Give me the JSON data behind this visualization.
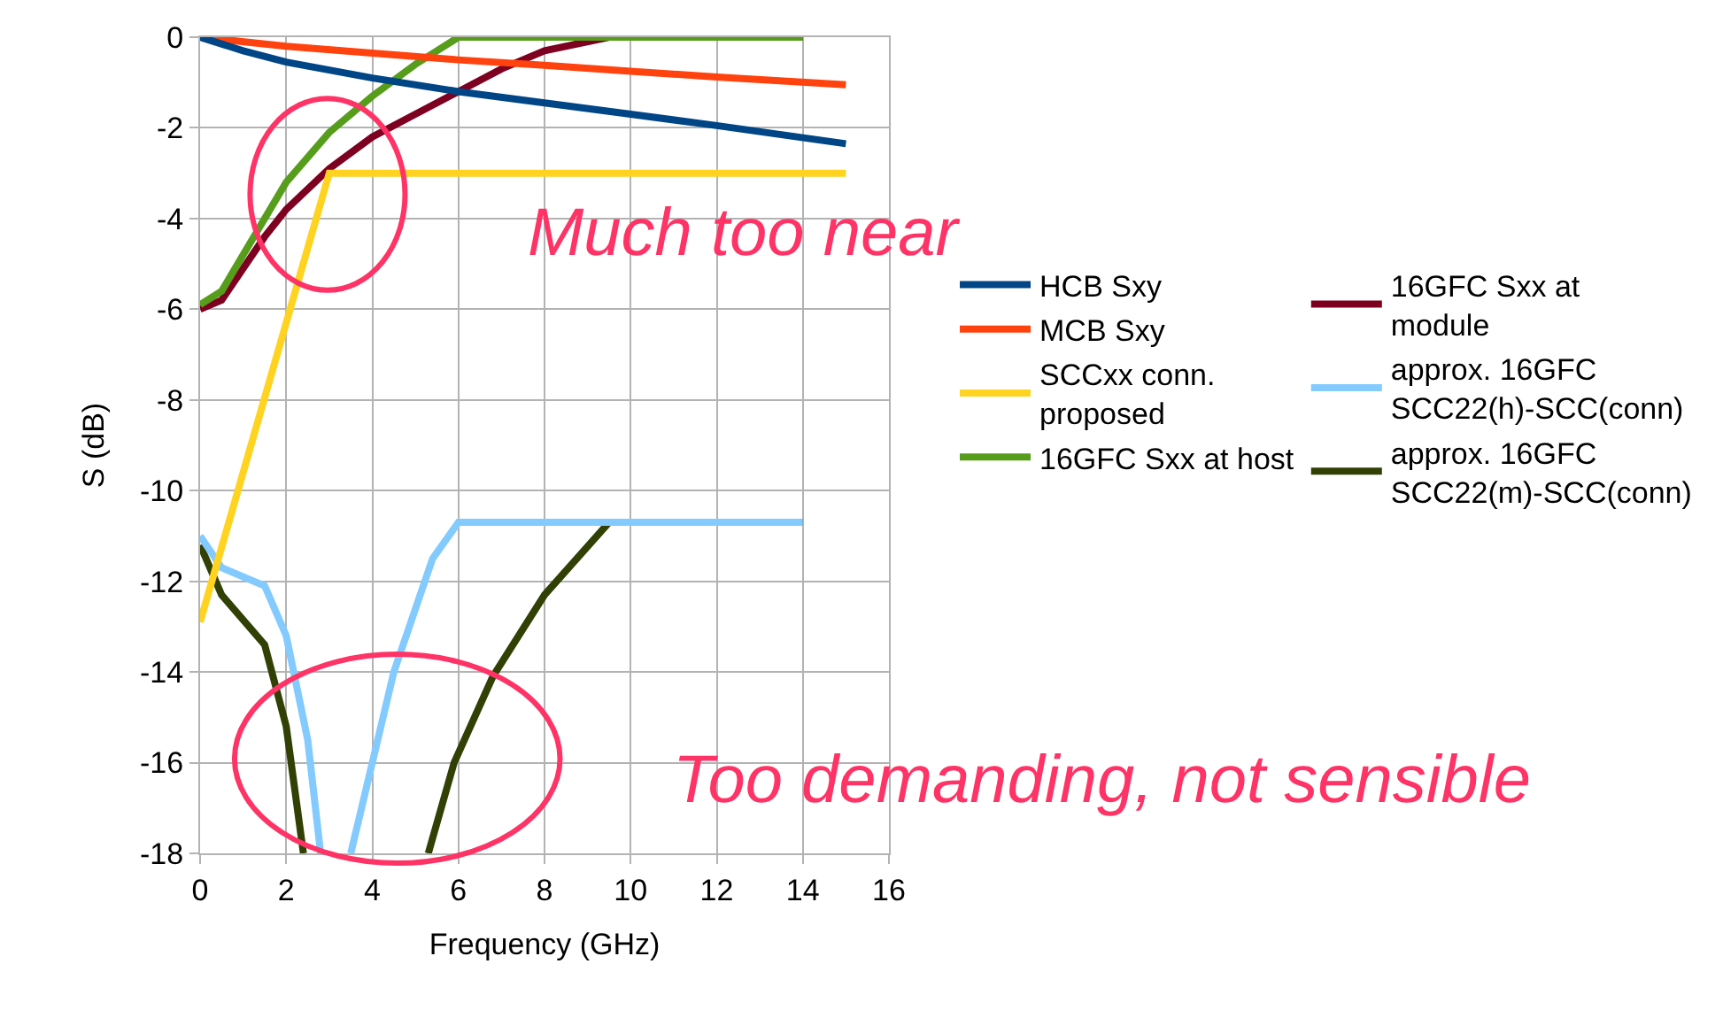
{
  "chart_data": {
    "type": "line",
    "xlabel": "Frequency (GHz)",
    "ylabel": "S (dB)",
    "xlim": [
      0,
      16
    ],
    "ylim": [
      -18,
      0
    ],
    "xticks": [
      0,
      2,
      4,
      6,
      8,
      10,
      12,
      14,
      16
    ],
    "yticks": [
      0,
      -2,
      -4,
      -6,
      -8,
      -10,
      -12,
      -14,
      -16,
      -18
    ],
    "grid": true,
    "legend": "right",
    "marker": "none",
    "line_style": "solid",
    "annotations": [
      "Much too near",
      "Too demanding, not sensible"
    ],
    "series": [
      {
        "name": "HCB Sxy",
        "color": "#004586",
        "x": [
          0,
          1,
          2,
          4,
          6,
          8,
          10,
          12,
          15
        ],
        "values": [
          0,
          -0.3,
          -0.55,
          -0.9,
          -1.2,
          -1.45,
          -1.7,
          -1.95,
          -2.35
        ]
      },
      {
        "name": "MCB Sxy",
        "color": "#ff420e",
        "x": [
          0,
          2,
          4,
          6,
          8,
          10,
          12,
          15
        ],
        "values": [
          0,
          -0.2,
          -0.35,
          -0.5,
          -0.62,
          -0.75,
          -0.88,
          -1.05
        ]
      },
      {
        "name": "SCCxx conn. proposed",
        "color": "#ffd320",
        "x": [
          0,
          3,
          15
        ],
        "values": [
          -12.9,
          -3,
          -3
        ]
      },
      {
        "name": "16GFC Sxx at host",
        "color": "#579d1c",
        "x": [
          0,
          0.5,
          1,
          1.5,
          2,
          3,
          4,
          5,
          6,
          14
        ],
        "values": [
          -5.9,
          -5.6,
          -4.8,
          -4,
          -3.2,
          -2.1,
          -1.3,
          -0.6,
          0,
          0
        ]
      },
      {
        "name": "16GFC Sxx at module",
        "color": "#7e0021",
        "x": [
          0,
          0.5,
          1,
          1.5,
          2,
          3,
          4,
          5,
          6,
          7,
          8,
          9.5,
          14
        ],
        "values": [
          -6,
          -5.8,
          -5.1,
          -4.4,
          -3.8,
          -2.9,
          -2.2,
          -1.7,
          -1.2,
          -0.7,
          -0.3,
          0,
          0
        ]
      },
      {
        "name": "approx. 16GFC SCC22(h)-SCC(conn)",
        "color": "#83caff",
        "x": [
          0,
          0.5,
          1.5,
          2,
          2.5,
          2.8,
          3.2,
          3.5,
          4,
          4.5,
          5.4,
          6,
          14
        ],
        "values": [
          -11,
          -11.7,
          -12.1,
          -13.2,
          -15.5,
          -18,
          null,
          -18,
          -16,
          -14,
          -11.5,
          -10.7,
          -10.7
        ]
      },
      {
        "name": "approx. 16GFC SCC22(m)-SCC(conn)",
        "color": "#314004",
        "x": [
          0,
          0.5,
          1.5,
          2,
          2.4,
          3.8,
          5.3,
          5.9,
          6.8,
          8,
          9.5,
          14
        ],
        "values": [
          -11.2,
          -12.3,
          -13.4,
          -15.2,
          -18,
          null,
          -18,
          -16,
          -14.1,
          -12.3,
          -10.7,
          -10.7
        ]
      }
    ]
  }
}
